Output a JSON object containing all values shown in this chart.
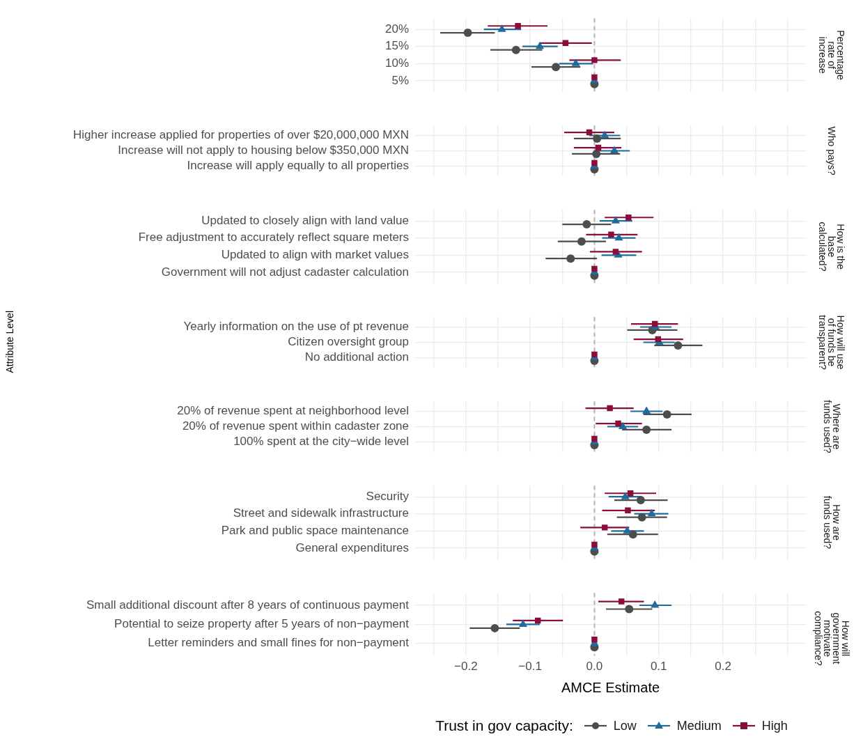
{
  "chart_data": [
    {
      "type": "scatter",
      "orientation": "horizontal",
      "annotations": [
        "Percentage rate of increase"
      ],
      "tick_labels": "y",
      "grid": true,
      "xlim": [
        -0.28,
        0.33
      ],
      "xticks": [
        -0.25,
        -0.2,
        -0.15,
        -0.1,
        -0.05,
        0,
        0.05,
        0.1,
        0.15,
        0.2,
        0.25,
        0.3
      ],
      "ref_lines": [
        {
          "axis": "x",
          "value": 0,
          "color": "#b3b3b3",
          "line_style": "dashed"
        }
      ],
      "categories": [
        "20%",
        "15%",
        "10%",
        "5%"
      ],
      "series": [
        {
          "color": "#4d4d4d",
          "marker": "circle",
          "values": [
            -0.197,
            -0.122,
            -0.06,
            0
          ],
          "errors": [
            [
              -0.24,
              -0.155
            ],
            [
              -0.162,
              -0.081
            ],
            [
              -0.098,
              -0.022
            ],
            null
          ]
        },
        {
          "color": "#1f6b9c",
          "marker": "triangle",
          "values": [
            -0.144,
            -0.085,
            -0.029,
            0
          ],
          "errors": [
            [
              -0.172,
              -0.114
            ],
            [
              -0.112,
              -0.057
            ],
            [
              -0.055,
              -0.002
            ],
            null
          ]
        },
        {
          "color": "#8b0d3c",
          "marker": "square",
          "values": [
            -0.119,
            -0.045,
            0.0,
            0
          ],
          "errors": [
            [
              -0.166,
              -0.073
            ],
            [
              -0.085,
              -0.004
            ],
            [
              -0.039,
              0.041
            ],
            null
          ]
        }
      ]
    },
    {
      "type": "scatter",
      "orientation": "horizontal",
      "annotations": [
        "Who pays?"
      ],
      "tick_labels": "y",
      "grid": true,
      "xlim": [
        -0.28,
        0.33
      ],
      "xticks": [
        -0.25,
        -0.2,
        -0.15,
        -0.1,
        -0.05,
        0,
        0.05,
        0.1,
        0.15,
        0.2,
        0.25,
        0.3
      ],
      "ref_lines": [
        {
          "axis": "x",
          "value": 0,
          "color": "#b3b3b3",
          "line_style": "dashed"
        }
      ],
      "categories": [
        "Higher increase applied for properties of over $20,000,000 MXN",
        "Increase will not apply to housing below $350,000 MXN",
        "Increase will apply equally to all properties"
      ],
      "series": [
        {
          "color": "#4d4d4d",
          "marker": "circle",
          "values": [
            0.004,
            0.003,
            0
          ],
          "errors": [
            [
              -0.032,
              0.041
            ],
            [
              -0.035,
              0.04
            ],
            null
          ]
        },
        {
          "color": "#1f6b9c",
          "marker": "triangle",
          "values": [
            0.016,
            0.031,
            0
          ],
          "errors": [
            [
              -0.008,
              0.04
            ],
            [
              0.007,
              0.055
            ],
            null
          ]
        },
        {
          "color": "#8b0d3c",
          "marker": "square",
          "values": [
            -0.008,
            0.006,
            0
          ],
          "errors": [
            [
              -0.047,
              0.031
            ],
            [
              -0.032,
              0.042
            ],
            null
          ]
        }
      ]
    },
    {
      "type": "scatter",
      "orientation": "horizontal",
      "annotations": [
        "How is the base calculated?"
      ],
      "tick_labels": "y",
      "grid": true,
      "xlim": [
        -0.28,
        0.33
      ],
      "xticks": [
        -0.25,
        -0.2,
        -0.15,
        -0.1,
        -0.05,
        0,
        0.05,
        0.1,
        0.15,
        0.2,
        0.25,
        0.3
      ],
      "ref_lines": [
        {
          "axis": "x",
          "value": 0,
          "color": "#b3b3b3",
          "line_style": "dashed"
        }
      ],
      "categories": [
        "Updated to closely align with land value",
        "Free adjustment to accurately reflect square meters",
        "Updated to align with market values",
        "Government will not adjust cadaster calculation"
      ],
      "series": [
        {
          "color": "#4d4d4d",
          "marker": "circle",
          "values": [
            -0.012,
            -0.02,
            -0.037,
            0
          ],
          "errors": [
            [
              -0.05,
              0.026
            ],
            [
              -0.057,
              0.018
            ],
            [
              -0.076,
              0.004
            ],
            null
          ]
        },
        {
          "color": "#1f6b9c",
          "marker": "triangle",
          "values": [
            0.033,
            0.038,
            0.037,
            0
          ],
          "errors": [
            [
              0.008,
              0.059
            ],
            [
              0.012,
              0.064
            ],
            [
              0.011,
              0.065
            ],
            null
          ]
        },
        {
          "color": "#8b0d3c",
          "marker": "square",
          "values": [
            0.053,
            0.026,
            0.033,
            0
          ],
          "errors": [
            [
              0.016,
              0.092
            ],
            [
              -0.013,
              0.067
            ],
            [
              -0.007,
              0.074
            ],
            null
          ]
        }
      ]
    },
    {
      "type": "scatter",
      "orientation": "horizontal",
      "annotations": [
        "How will use of funds be transparent?"
      ],
      "ylabel": "Attribute Level",
      "tick_labels": "y",
      "grid": true,
      "xlim": [
        -0.28,
        0.33
      ],
      "xticks": [
        -0.25,
        -0.2,
        -0.15,
        -0.1,
        -0.05,
        0,
        0.05,
        0.1,
        0.15,
        0.2,
        0.25,
        0.3
      ],
      "ref_lines": [
        {
          "axis": "x",
          "value": 0,
          "color": "#b3b3b3",
          "line_style": "dashed"
        }
      ],
      "categories": [
        "Yearly information on the use of pt revenue",
        "Citizen oversight group",
        "No additional action"
      ],
      "series": [
        {
          "color": "#4d4d4d",
          "marker": "circle",
          "values": [
            0.09,
            0.13,
            0
          ],
          "errors": [
            [
              0.051,
              0.129
            ],
            [
              0.093,
              0.168
            ],
            null
          ]
        },
        {
          "color": "#1f6b9c",
          "marker": "triangle",
          "values": [
            0.095,
            0.101,
            0
          ],
          "errors": [
            [
              0.071,
              0.12
            ],
            [
              0.076,
              0.125
            ],
            null
          ]
        },
        {
          "color": "#8b0d3c",
          "marker": "square",
          "values": [
            0.094,
            0.099,
            0
          ],
          "errors": [
            [
              0.057,
              0.13
            ],
            [
              0.061,
              0.138
            ],
            null
          ]
        }
      ]
    },
    {
      "type": "scatter",
      "orientation": "horizontal",
      "annotations": [
        "Where are funds used?"
      ],
      "tick_labels": "y",
      "grid": true,
      "xlim": [
        -0.28,
        0.33
      ],
      "xticks": [
        -0.25,
        -0.2,
        -0.15,
        -0.1,
        -0.05,
        0,
        0.05,
        0.1,
        0.15,
        0.2,
        0.25,
        0.3
      ],
      "ref_lines": [
        {
          "axis": "x",
          "value": 0,
          "color": "#b3b3b3",
          "line_style": "dashed"
        }
      ],
      "categories": [
        "20% of revenue spent at neighborhood level",
        "20% of revenue spent within cadaster zone",
        "100% spent at the city−wide level"
      ],
      "series": [
        {
          "color": "#4d4d4d",
          "marker": "circle",
          "values": [
            0.113,
            0.081,
            0
          ],
          "errors": [
            [
              0.076,
              0.151
            ],
            [
              0.043,
              0.12
            ],
            null
          ]
        },
        {
          "color": "#1f6b9c",
          "marker": "triangle",
          "values": [
            0.081,
            0.044,
            0
          ],
          "errors": [
            [
              0.056,
              0.106
            ],
            [
              0.02,
              0.068
            ],
            null
          ]
        },
        {
          "color": "#8b0d3c",
          "marker": "square",
          "values": [
            0.024,
            0.037,
            0
          ],
          "errors": [
            [
              -0.014,
              0.061
            ],
            [
              0.002,
              0.074
            ],
            null
          ]
        }
      ]
    },
    {
      "type": "scatter",
      "orientation": "horizontal",
      "annotations": [
        "How are funds used?"
      ],
      "tick_labels": "y",
      "grid": true,
      "xlim": [
        -0.28,
        0.33
      ],
      "xticks": [
        -0.25,
        -0.2,
        -0.15,
        -0.1,
        -0.05,
        0,
        0.05,
        0.1,
        0.15,
        0.2,
        0.25,
        0.3
      ],
      "ref_lines": [
        {
          "axis": "x",
          "value": 0,
          "color": "#b3b3b3",
          "line_style": "dashed"
        }
      ],
      "categories": [
        "Security",
        "Street and sidewalk infrastructure",
        "Park and public space maintenance",
        "General expenditures"
      ],
      "series": [
        {
          "color": "#4d4d4d",
          "marker": "circle",
          "values": [
            0.072,
            0.074,
            0.06,
            0
          ],
          "errors": [
            [
              0.031,
              0.114
            ],
            [
              0.035,
              0.113
            ],
            [
              0.02,
              0.099
            ],
            null
          ]
        },
        {
          "color": "#1f6b9c",
          "marker": "triangle",
          "values": [
            0.048,
            0.089,
            0.051,
            0
          ],
          "errors": [
            [
              0.022,
              0.073
            ],
            [
              0.062,
              0.115
            ],
            [
              0.026,
              0.077
            ],
            null
          ]
        },
        {
          "color": "#8b0d3c",
          "marker": "square",
          "values": [
            0.056,
            0.052,
            0.016,
            0
          ],
          "errors": [
            [
              0.016,
              0.096
            ],
            [
              0.012,
              0.094
            ],
            [
              -0.022,
              0.054
            ],
            null
          ]
        }
      ]
    },
    {
      "type": "scatter",
      "orientation": "horizontal",
      "annotations": [
        "How will government motivate compliance?"
      ],
      "xlabel": "AMCE Estimate",
      "legend": "bottom",
      "legend_title": "Trust in gov capacity:",
      "grid": true,
      "xlim": [
        -0.28,
        0.33
      ],
      "xticks": [
        {
          "value": -0.25,
          "label": null
        },
        {
          "value": -0.2,
          "label": "−0.2"
        },
        {
          "value": -0.15,
          "label": null
        },
        {
          "value": -0.1,
          "label": "−0.1"
        },
        {
          "value": -0.05,
          "label": null
        },
        {
          "value": 0,
          "label": "0.0"
        },
        {
          "value": 0.05,
          "label": null
        },
        0.1,
        {
          "value": 0.15,
          "label": null
        },
        0.2,
        {
          "value": 0.25,
          "label": null
        },
        {
          "value": 0.3,
          "label": null
        }
      ],
      "ref_lines": [
        {
          "axis": "x",
          "value": 0,
          "color": "#b3b3b3",
          "line_style": "dashed"
        }
      ],
      "categories": [
        "Small additional discount after 8 years of continuous payment",
        "Potential to seize property after 5 years of non−payment",
        "Letter reminders and small fines for non−payment"
      ],
      "series": [
        {
          "name": "Low",
          "color": "#4d4d4d",
          "marker": "circle",
          "values": [
            0.054,
            -0.155,
            0
          ],
          "errors": [
            [
              0.018,
              0.09
            ],
            [
              -0.194,
              -0.116
            ],
            null
          ]
        },
        {
          "name": "Medium",
          "color": "#1f6b9c",
          "marker": "triangle",
          "values": [
            0.094,
            -0.111,
            0
          ],
          "errors": [
            [
              0.07,
              0.12
            ],
            [
              -0.137,
              -0.085
            ],
            null
          ]
        },
        {
          "name": "High",
          "color": "#8b0d3c",
          "marker": "square",
          "values": [
            0.042,
            -0.088,
            0
          ],
          "errors": [
            [
              0.006,
              0.077
            ],
            [
              -0.127,
              -0.049
            ],
            null
          ]
        }
      ]
    }
  ]
}
